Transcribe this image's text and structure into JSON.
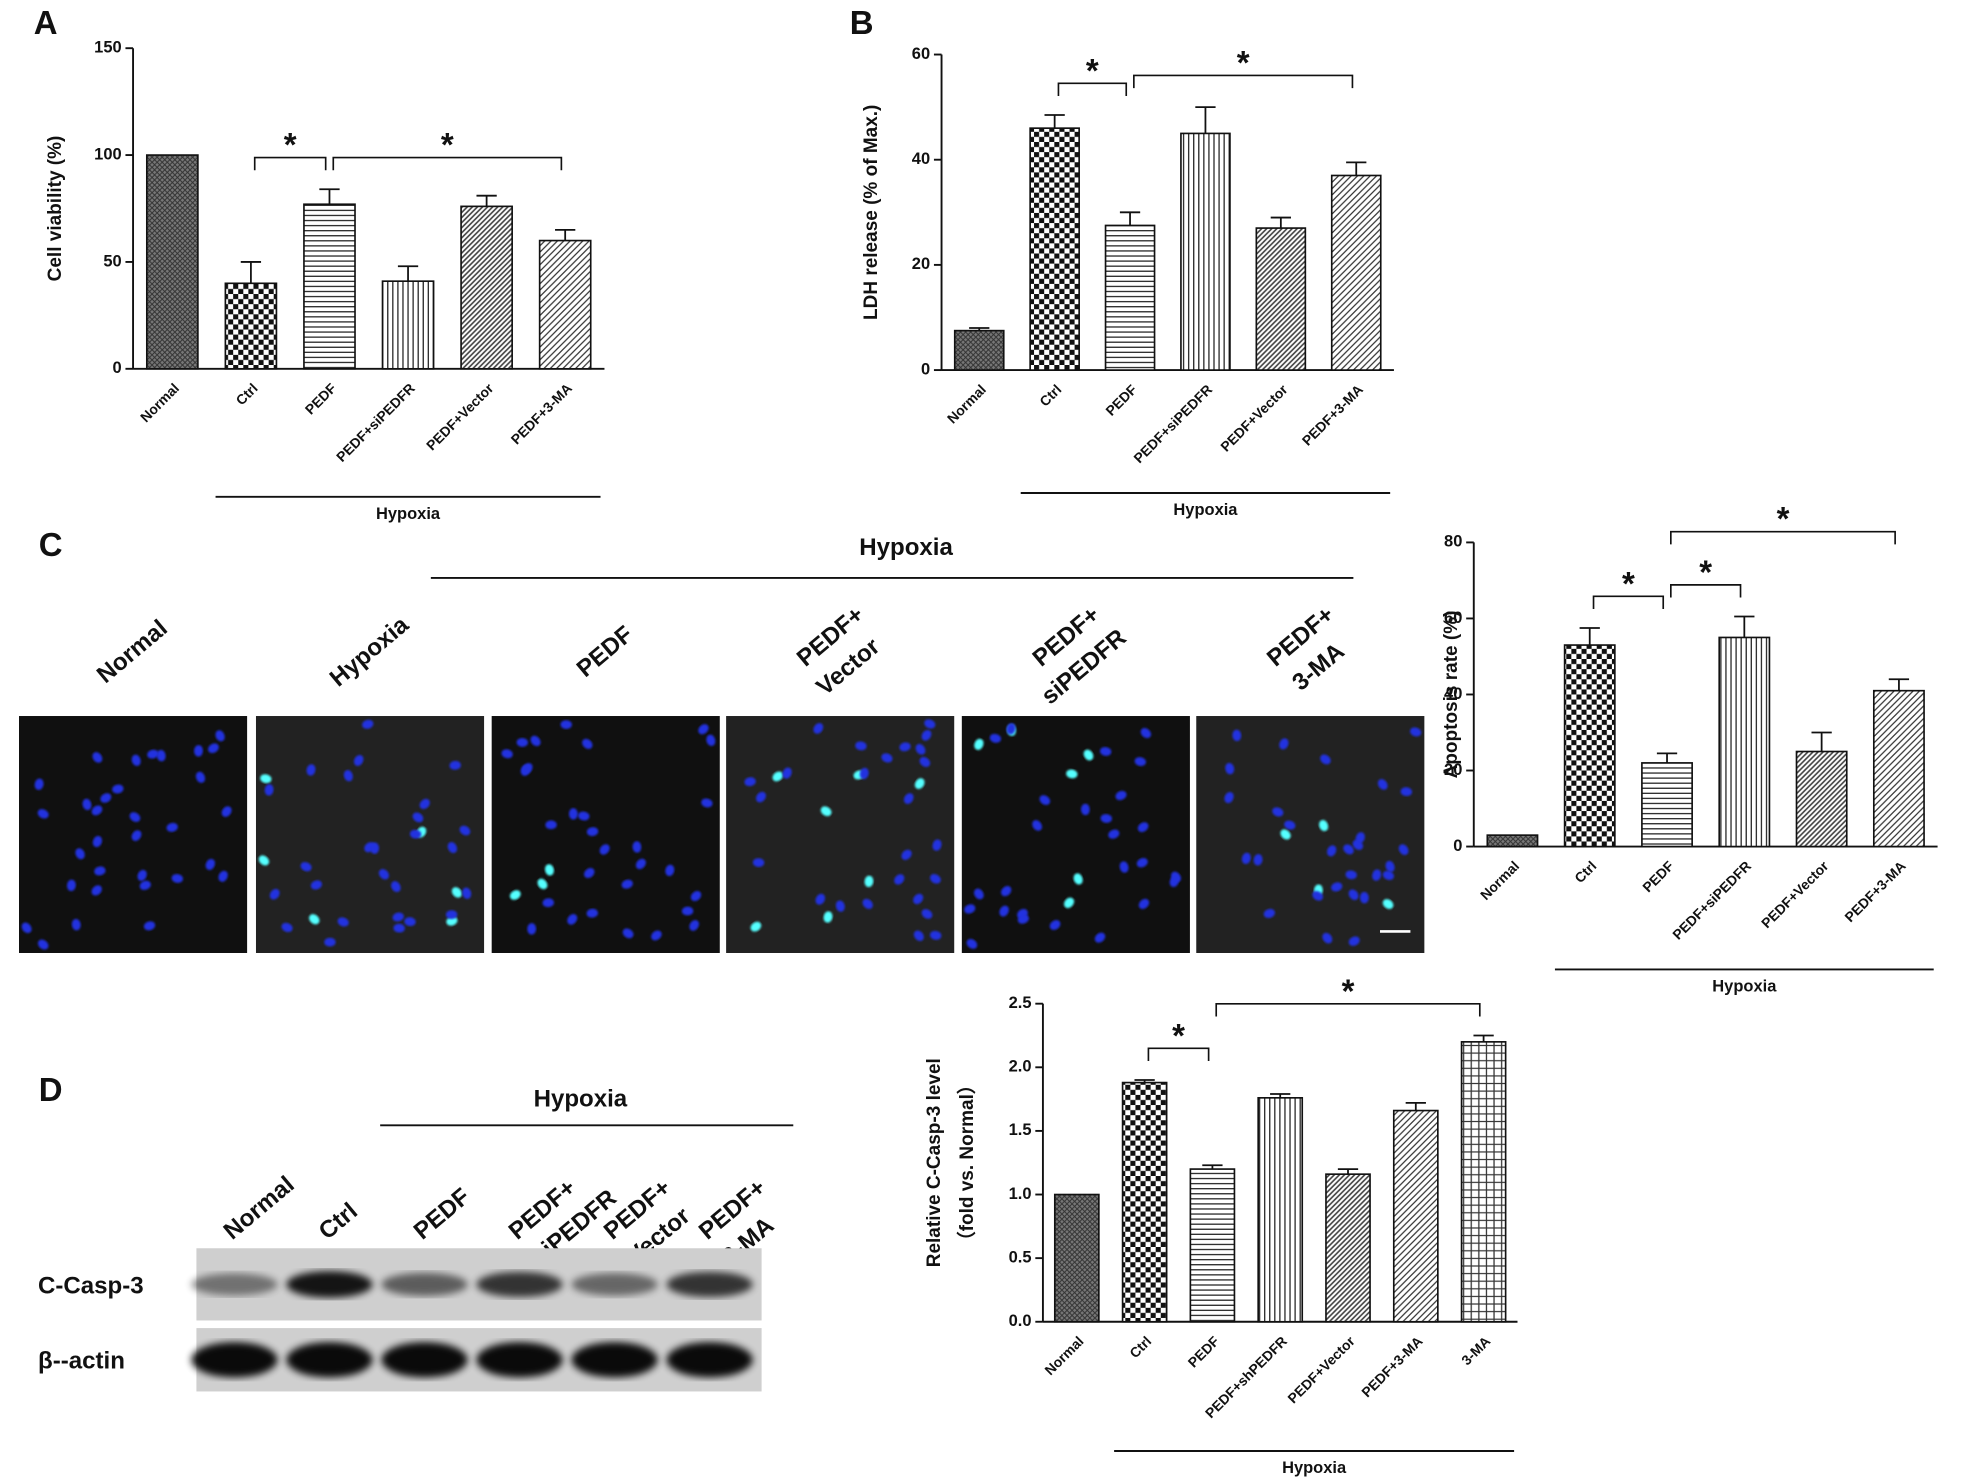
{
  "chart_data": [
    {
      "type": "bar",
      "panel": "A",
      "ylabel": [
        "Cell viability (%)"
      ],
      "categories": [
        "Normal",
        "Ctrl",
        "PEDF",
        "PEDF+siPEDFR",
        "PEDF+Vector",
        "PEDF+3-MA"
      ],
      "values": [
        100,
        40,
        77,
        41,
        76,
        60
      ],
      "errors": [
        null,
        10,
        7,
        7,
        5,
        5
      ],
      "patterns": [
        "crosshatch",
        "checker",
        "hlines",
        "vlines",
        "diag-fine",
        "diag"
      ],
      "ylim": [
        0,
        150
      ],
      "yticks": [
        0,
        50,
        100,
        150
      ],
      "group": {
        "label": "Hypoxia",
        "from": "Ctrl",
        "to": "PEDF+3-MA"
      },
      "brackets": [
        {
          "label": "*",
          "from": "Ctrl",
          "to": "PEDF"
        },
        {
          "label": "*",
          "from": "PEDF",
          "to": "PEDF+3-MA"
        }
      ]
    },
    {
      "type": "bar",
      "panel": "B",
      "ylabel": [
        "LDH release (% of Max.)"
      ],
      "categories": [
        "Normal",
        "Ctrl",
        "PEDF",
        "PEDF+siPEDFR",
        "PEDF+Vector",
        "PEDF+3-MA"
      ],
      "values": [
        7.5,
        46,
        27.5,
        45,
        27,
        37
      ],
      "errors": [
        0.5,
        2.5,
        2.5,
        5,
        2,
        2.5
      ],
      "patterns": [
        "crosshatch",
        "checker",
        "hlines",
        "vlines",
        "diag-fine",
        "diag"
      ],
      "ylim": [
        0,
        60
      ],
      "yticks": [
        0,
        20,
        40,
        60
      ],
      "group": {
        "label": "Hypoxia",
        "from": "Ctrl",
        "to": "PEDF+3-MA"
      },
      "brackets": [
        {
          "label": "*",
          "from": "Ctrl",
          "to": "PEDF"
        },
        {
          "label": "*",
          "from": "PEDF",
          "to": "PEDF+3-MA"
        }
      ]
    },
    {
      "type": "bar",
      "panel": "C",
      "ylabel": [
        "Apoptosis rate (%)"
      ],
      "categories": [
        "Normal",
        "Ctrl",
        "PEDF",
        "PEDF+siPEDFR",
        "PEDF+Vector",
        "PEDF+3-MA"
      ],
      "values": [
        3,
        53,
        22,
        55,
        25,
        41
      ],
      "errors": [
        null,
        4.5,
        2.5,
        5.5,
        5,
        3
      ],
      "patterns": [
        "crosshatch",
        "checker",
        "hlines",
        "vlines",
        "diag-fine",
        "diag"
      ],
      "ylim": [
        0,
        80
      ],
      "yticks": [
        0,
        20,
        40,
        60,
        80
      ],
      "group": {
        "label": "Hypoxia",
        "from": "Ctrl",
        "to": "PEDF+3-MA"
      },
      "brackets": [
        {
          "label": "*",
          "from": "Ctrl",
          "to": "PEDF"
        },
        {
          "label": "*",
          "from": "PEDF",
          "to": "PEDF+siPEDFR"
        },
        {
          "label": "*",
          "from": "PEDF",
          "to": "PEDF+3-MA"
        }
      ]
    },
    {
      "type": "bar",
      "panel": "D",
      "ylabel": [
        "Relative C-Casp-3 level",
        "（fold vs. Normal）"
      ],
      "categories": [
        "Normal",
        "Ctrl",
        "PEDF",
        "PEDF+shPEDFR",
        "PEDF+Vector",
        "PEDF+3-MA",
        "3-MA"
      ],
      "values": [
        1.0,
        1.88,
        1.2,
        1.76,
        1.16,
        1.66,
        2.2
      ],
      "errors": [
        null,
        0.02,
        0.03,
        0.03,
        0.04,
        0.06,
        0.05
      ],
      "patterns": [
        "crosshatch",
        "checker",
        "hlines",
        "vlines",
        "diag-fine",
        "diag",
        "grid"
      ],
      "ylim": [
        0,
        2.5
      ],
      "yticks": [
        {
          "value": 0,
          "label": "0.0"
        },
        0.5,
        {
          "value": 1,
          "label": "1.0"
        },
        1.5,
        {
          "value": 2,
          "label": "2.0"
        },
        2.5
      ],
      "group": {
        "label": "Hypoxia",
        "from": "Ctrl",
        "to": "3-MA"
      },
      "brackets": [
        {
          "label": "*",
          "from": "Ctrl",
          "to": "PEDF"
        },
        {
          "label": "*",
          "from": "PEDF",
          "to": "3-MA"
        }
      ]
    }
  ],
  "microscopy": {
    "header": "Hypoxia",
    "columns": [
      [
        "Normal"
      ],
      [
        "Hypoxia"
      ],
      [
        "PEDF"
      ],
      [
        "PEDF+",
        "Vector"
      ],
      [
        "PEDF+",
        "siPEDFR"
      ],
      [
        "PEDF+",
        "3-MA"
      ]
    ]
  },
  "blot": {
    "header": "Hypoxia",
    "lanes": [
      [
        "Normal"
      ],
      [
        "Ctrl"
      ],
      [
        "PEDF"
      ],
      [
        "PEDF+",
        "siPEDFR"
      ],
      [
        "PEDF+",
        "Vector"
      ],
      [
        "PEDF+",
        "3-MA"
      ]
    ],
    "rows": [
      "C-Casp-3",
      "β--actin"
    ]
  }
}
